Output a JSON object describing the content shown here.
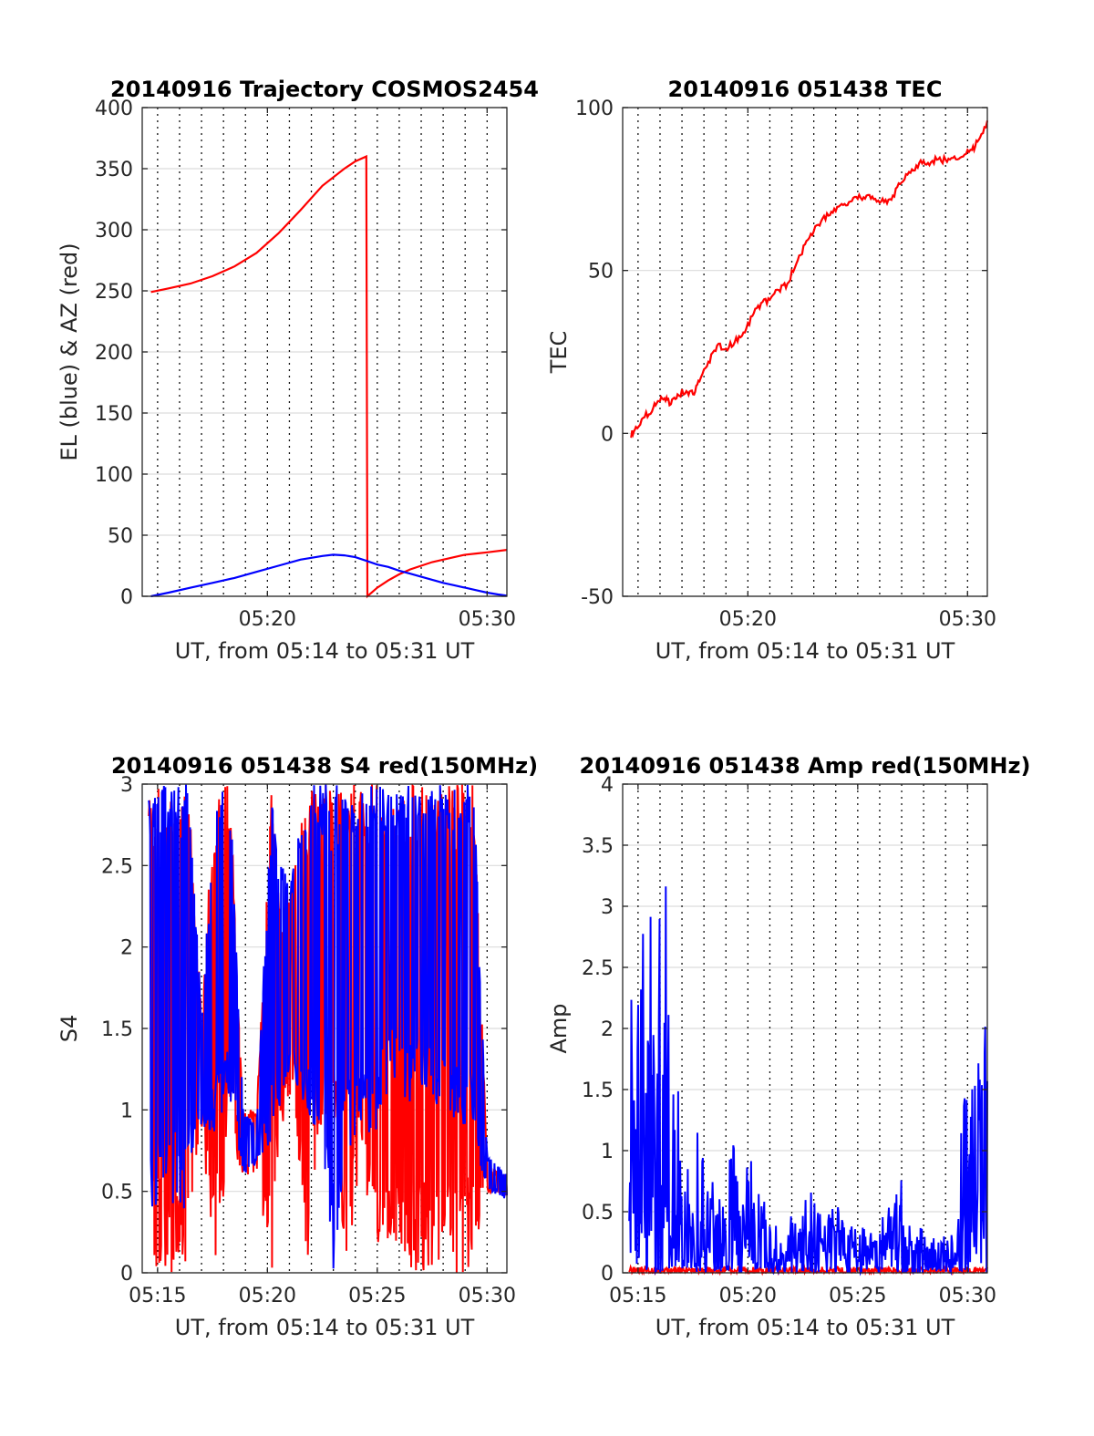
{
  "figure": {
    "background": "#ffffff",
    "colors": {
      "red": "#ff0000",
      "blue": "#0000ff",
      "grid": "#dcdcdc",
      "axis": "#262626"
    }
  },
  "chart_data": [
    {
      "id": "trajectory",
      "type": "line",
      "title": "20140916 Trajectory COSMOS2454",
      "xlabel": "UT, from 05:14 to 05:31 UT",
      "ylabel": "EL (blue) & AZ (red)",
      "xlim": [
        14.3,
        30.9
      ],
      "ylim": [
        0,
        400
      ],
      "x_unit": "minutes after 05:00 UT",
      "xticks": [
        {
          "v": 20,
          "label": "05:20"
        },
        {
          "v": 30,
          "label": "05:30"
        }
      ],
      "yticks": [
        0,
        50,
        100,
        150,
        200,
        250,
        300,
        350,
        400
      ],
      "minor_x_grid_minutes": [
        15,
        16,
        17,
        18,
        19,
        20,
        21,
        22,
        23,
        24,
        25,
        26,
        27,
        28,
        29,
        30
      ],
      "grid": true,
      "series": [
        {
          "color": "red",
          "points": [
            [
              14.7,
              249
            ],
            [
              15.5,
              252
            ],
            [
              16.5,
              256
            ],
            [
              17.5,
              262
            ],
            [
              18.5,
              270
            ],
            [
              19.5,
              281
            ],
            [
              20.5,
              297
            ],
            [
              21.5,
              316
            ],
            [
              22.5,
              336
            ],
            [
              23.5,
              350
            ],
            [
              24.0,
              356
            ],
            [
              24.5,
              360
            ],
            [
              24.55,
              0
            ],
            [
              25.0,
              7
            ],
            [
              25.5,
              13
            ],
            [
              26.0,
              18
            ],
            [
              26.5,
              22
            ],
            [
              27.0,
              25
            ],
            [
              27.5,
              28
            ],
            [
              28.0,
              30
            ],
            [
              28.5,
              32
            ],
            [
              29.0,
              34
            ],
            [
              29.5,
              35
            ],
            [
              30.0,
              36
            ],
            [
              30.9,
              38
            ]
          ]
        },
        {
          "color": "blue",
          "points": [
            [
              14.7,
              0
            ],
            [
              15.5,
              3
            ],
            [
              16.5,
              7
            ],
            [
              17.5,
              11
            ],
            [
              18.5,
              15
            ],
            [
              19.5,
              20
            ],
            [
              20.5,
              25
            ],
            [
              21.5,
              30
            ],
            [
              22.5,
              33
            ],
            [
              23.0,
              34
            ],
            [
              23.5,
              33.5
            ],
            [
              24.0,
              32
            ],
            [
              24.5,
              29
            ],
            [
              25.0,
              26
            ],
            [
              25.5,
              24
            ],
            [
              26.0,
              21
            ],
            [
              26.5,
              18.5
            ],
            [
              27.0,
              16
            ],
            [
              27.5,
              13.5
            ],
            [
              28.0,
              11
            ],
            [
              28.5,
              9
            ],
            [
              29.0,
              7
            ],
            [
              29.5,
              5
            ],
            [
              30.0,
              3
            ],
            [
              30.5,
              1.5
            ],
            [
              30.9,
              0.5
            ]
          ]
        }
      ]
    },
    {
      "id": "tec",
      "type": "line",
      "title": "20140916 051438 TEC",
      "xlabel": "UT, from 05:14 to 05:31 UT",
      "ylabel": "TEC",
      "xlim": [
        14.3,
        30.9
      ],
      "ylim": [
        -50,
        100
      ],
      "x_unit": "minutes after 05:00 UT",
      "xticks": [
        {
          "v": 20,
          "label": "05:20"
        },
        {
          "v": 30,
          "label": "05:30"
        }
      ],
      "yticks": [
        -50,
        0,
        50,
        100
      ],
      "minor_x_grid_minutes": [
        15,
        16,
        17,
        18,
        19,
        20,
        21,
        22,
        23,
        24,
        25,
        26,
        27,
        28,
        29,
        30
      ],
      "grid": true,
      "series": [
        {
          "color": "red",
          "points": [
            [
              14.65,
              -1
            ],
            [
              14.9,
              2
            ],
            [
              15.3,
              5
            ],
            [
              15.7,
              8
            ],
            [
              16.0,
              10
            ],
            [
              16.3,
              11
            ],
            [
              16.5,
              9
            ],
            [
              16.8,
              12
            ],
            [
              17.2,
              13
            ],
            [
              17.5,
              12
            ],
            [
              17.8,
              16
            ],
            [
              18.2,
              22
            ],
            [
              18.6,
              27
            ],
            [
              19.0,
              26
            ],
            [
              19.4,
              28
            ],
            [
              19.8,
              31
            ],
            [
              20.2,
              36
            ],
            [
              20.6,
              40
            ],
            [
              21.0,
              41
            ],
            [
              21.4,
              44
            ],
            [
              21.8,
              46
            ],
            [
              22.2,
              52
            ],
            [
              22.6,
              58
            ],
            [
              23.0,
              62
            ],
            [
              23.4,
              66
            ],
            [
              23.8,
              68
            ],
            [
              24.2,
              70
            ],
            [
              24.6,
              71
            ],
            [
              25.0,
              72
            ],
            [
              25.4,
              73
            ],
            [
              25.8,
              72
            ],
            [
              26.2,
              71
            ],
            [
              26.6,
              73
            ],
            [
              27.0,
              77
            ],
            [
              27.4,
              80
            ],
            [
              27.8,
              83
            ],
            [
              28.2,
              83
            ],
            [
              28.6,
              84
            ],
            [
              29.0,
              84
            ],
            [
              29.4,
              85
            ],
            [
              29.8,
              85
            ],
            [
              30.2,
              87
            ],
            [
              30.5,
              90
            ],
            [
              30.9,
              96
            ]
          ]
        }
      ]
    },
    {
      "id": "s4",
      "type": "line",
      "title": "20140916 051438 S4 red(150MHz)",
      "xlabel": "UT, from 05:14 to 05:31 UT",
      "ylabel": "S4",
      "xlim": [
        14.3,
        30.9
      ],
      "ylim": [
        0,
        3
      ],
      "x_unit": "minutes after 05:00 UT",
      "xticks": [
        {
          "v": 15,
          "label": "05:15"
        },
        {
          "v": 20,
          "label": "05:20"
        },
        {
          "v": 25,
          "label": "05:25"
        },
        {
          "v": 30,
          "label": "05:30"
        }
      ],
      "yticks": [
        0,
        0.5,
        1,
        1.5,
        2,
        2.5,
        3
      ],
      "minor_x_grid_minutes": [
        15,
        16,
        17,
        18,
        19,
        20,
        21,
        22,
        23,
        24,
        25,
        26,
        27,
        28,
        29,
        30
      ],
      "grid": true,
      "note": "dense noisy traces approximated",
      "series": [
        {
          "color": "red",
          "envelope": [
            [
              14.6,
              0,
              3
            ],
            [
              15.5,
              0,
              3
            ],
            [
              16.4,
              0,
              3
            ],
            [
              17.0,
              0.9,
              1.6
            ],
            [
              17.6,
              0,
              3
            ],
            [
              18.3,
              0.8,
              3
            ],
            [
              18.9,
              0.6,
              1.0
            ],
            [
              19.5,
              0.6,
              1.0
            ],
            [
              20.2,
              0,
              3
            ],
            [
              20.6,
              0.8,
              2.2
            ],
            [
              21.2,
              1.1,
              2.5
            ],
            [
              21.8,
              0,
              3
            ],
            [
              22.4,
              0.9,
              3
            ],
            [
              23.0,
              1.0,
              3
            ],
            [
              23.6,
              0,
              3
            ],
            [
              24.3,
              0.7,
              3
            ],
            [
              24.9,
              0,
              3
            ],
            [
              25.6,
              0,
              3
            ],
            [
              26.2,
              0,
              3
            ],
            [
              26.8,
              0,
              3
            ],
            [
              27.5,
              0,
              3
            ],
            [
              28.1,
              0,
              3
            ],
            [
              28.8,
              0,
              3
            ],
            [
              29.4,
              0,
              3
            ],
            [
              30.0,
              0.5,
              0.65
            ],
            [
              30.9,
              0.45,
              0.6
            ]
          ]
        },
        {
          "color": "blue",
          "envelope": [
            [
              14.6,
              0.3,
              3
            ],
            [
              15.5,
              0.3,
              3
            ],
            [
              16.4,
              0.4,
              3
            ],
            [
              17.0,
              0.9,
              1.6
            ],
            [
              17.6,
              0.8,
              3
            ],
            [
              18.3,
              1.0,
              3
            ],
            [
              18.9,
              0.6,
              1.0
            ],
            [
              19.5,
              0.65,
              0.9
            ],
            [
              20.2,
              0.8,
              3
            ],
            [
              20.6,
              1.0,
              2.5
            ],
            [
              21.2,
              1.1,
              2.5
            ],
            [
              21.8,
              0.9,
              3
            ],
            [
              22.4,
              0.9,
              3
            ],
            [
              23.0,
              0,
              3
            ],
            [
              23.6,
              0.7,
              3
            ],
            [
              24.3,
              0.9,
              3
            ],
            [
              24.9,
              0.8,
              3
            ],
            [
              25.6,
              1.2,
              3
            ],
            [
              26.2,
              1.0,
              3
            ],
            [
              26.8,
              1.1,
              3
            ],
            [
              27.5,
              1.0,
              3
            ],
            [
              28.1,
              1.0,
              3
            ],
            [
              28.8,
              0.9,
              3
            ],
            [
              29.4,
              0.8,
              3
            ],
            [
              30.0,
              0.5,
              0.72
            ],
            [
              30.9,
              0.45,
              0.6
            ]
          ]
        }
      ]
    },
    {
      "id": "amp",
      "type": "line",
      "title": "20140916 051438 Amp red(150MHz)",
      "xlabel": "UT, from 05:14 to 05:31 UT",
      "ylabel": "Amp",
      "xlim": [
        14.3,
        30.9
      ],
      "ylim": [
        0,
        4
      ],
      "x_unit": "minutes after 05:00 UT",
      "xticks": [
        {
          "v": 15,
          "label": "05:15"
        },
        {
          "v": 20,
          "label": "05:20"
        },
        {
          "v": 25,
          "label": "05:25"
        },
        {
          "v": 30,
          "label": "05:30"
        }
      ],
      "yticks": [
        0,
        0.5,
        1,
        1.5,
        2,
        2.5,
        3,
        3.5,
        4
      ],
      "minor_x_grid_minutes": [
        15,
        16,
        17,
        18,
        19,
        20,
        21,
        22,
        23,
        24,
        25,
        26,
        27,
        28,
        29,
        30
      ],
      "grid": true,
      "note": "dense noisy traces approximated",
      "series": [
        {
          "color": "red",
          "envelope": [
            [
              14.6,
              0,
              0.05
            ],
            [
              30.9,
              0,
              0.05
            ]
          ]
        },
        {
          "color": "blue",
          "envelope": [
            [
              14.6,
              0,
              2.9
            ],
            [
              15.0,
              0,
              2.9
            ],
            [
              15.5,
              0,
              3.3
            ],
            [
              16.0,
              0,
              3.2
            ],
            [
              16.5,
              0,
              3.3
            ],
            [
              16.7,
              0,
              2.2
            ],
            [
              17.0,
              0,
              1.2
            ],
            [
              17.5,
              0,
              1.2
            ],
            [
              18.0,
              0,
              1.1
            ],
            [
              18.5,
              0,
              0.7
            ],
            [
              19.0,
              0,
              0.6
            ],
            [
              19.4,
              0,
              1.35
            ],
            [
              19.8,
              0,
              0.8
            ],
            [
              20.2,
              0,
              1.1
            ],
            [
              20.6,
              0,
              0.8
            ],
            [
              21.0,
              0,
              0.5
            ],
            [
              21.5,
              0,
              0.45
            ],
            [
              22.0,
              0,
              0.5
            ],
            [
              22.5,
              0,
              0.5
            ],
            [
              23.0,
              0,
              0.9
            ],
            [
              23.5,
              0,
              0.4
            ],
            [
              24.0,
              0,
              0.7
            ],
            [
              24.5,
              0,
              0.4
            ],
            [
              25.0,
              0,
              0.45
            ],
            [
              25.5,
              0,
              0.3
            ],
            [
              26.0,
              0,
              0.55
            ],
            [
              26.5,
              0,
              0.7
            ],
            [
              27.0,
              0,
              0.9
            ],
            [
              27.5,
              0,
              0.35
            ],
            [
              28.0,
              0,
              0.4
            ],
            [
              28.5,
              0,
              0.3
            ],
            [
              29.0,
              0,
              0.35
            ],
            [
              29.5,
              0,
              0.3
            ],
            [
              29.8,
              0,
              1.8
            ],
            [
              30.2,
              0,
              1.6
            ],
            [
              30.5,
              0,
              2.0
            ],
            [
              30.9,
              0,
              2.2
            ]
          ]
        }
      ]
    }
  ]
}
